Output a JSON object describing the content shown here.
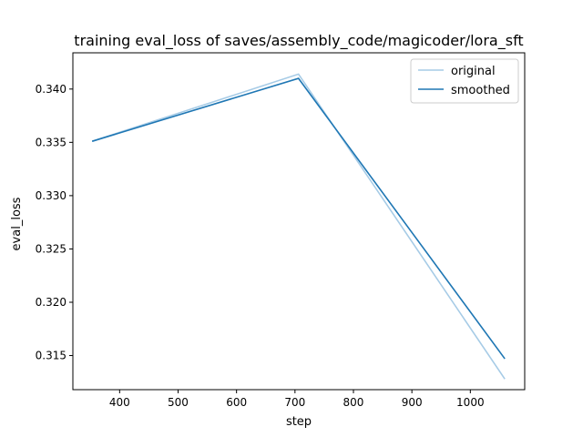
{
  "chart_data": {
    "type": "line",
    "title": "training eval_loss of saves/assembly_code/magicoder/lora_sft",
    "xlabel": "step",
    "ylabel": "eval_loss",
    "xlim": [
      320,
      1093
    ],
    "ylim": [
      0.3118,
      0.3434
    ],
    "xticks": [
      400,
      500,
      600,
      700,
      800,
      900,
      1000
    ],
    "yticks": [
      0.315,
      0.32,
      0.325,
      0.33,
      0.335,
      0.34
    ],
    "xtick_labels": [
      "400",
      "500",
      "600",
      "700",
      "800",
      "900",
      "1000"
    ],
    "ytick_labels": [
      "0.315",
      "0.320",
      "0.325",
      "0.330",
      "0.335",
      "0.340"
    ],
    "grid": false,
    "legend_position": "top-right",
    "series": [
      {
        "name": "original",
        "color": "#a6cbe6",
        "x": [
          353,
          706,
          1059
        ],
        "y": [
          0.3351,
          0.3414,
          0.3128
        ]
      },
      {
        "name": "smoothed",
        "color": "#1f77b4",
        "x": [
          353,
          706,
          1059
        ],
        "y": [
          0.3351,
          0.341,
          0.3147
        ]
      }
    ]
  }
}
